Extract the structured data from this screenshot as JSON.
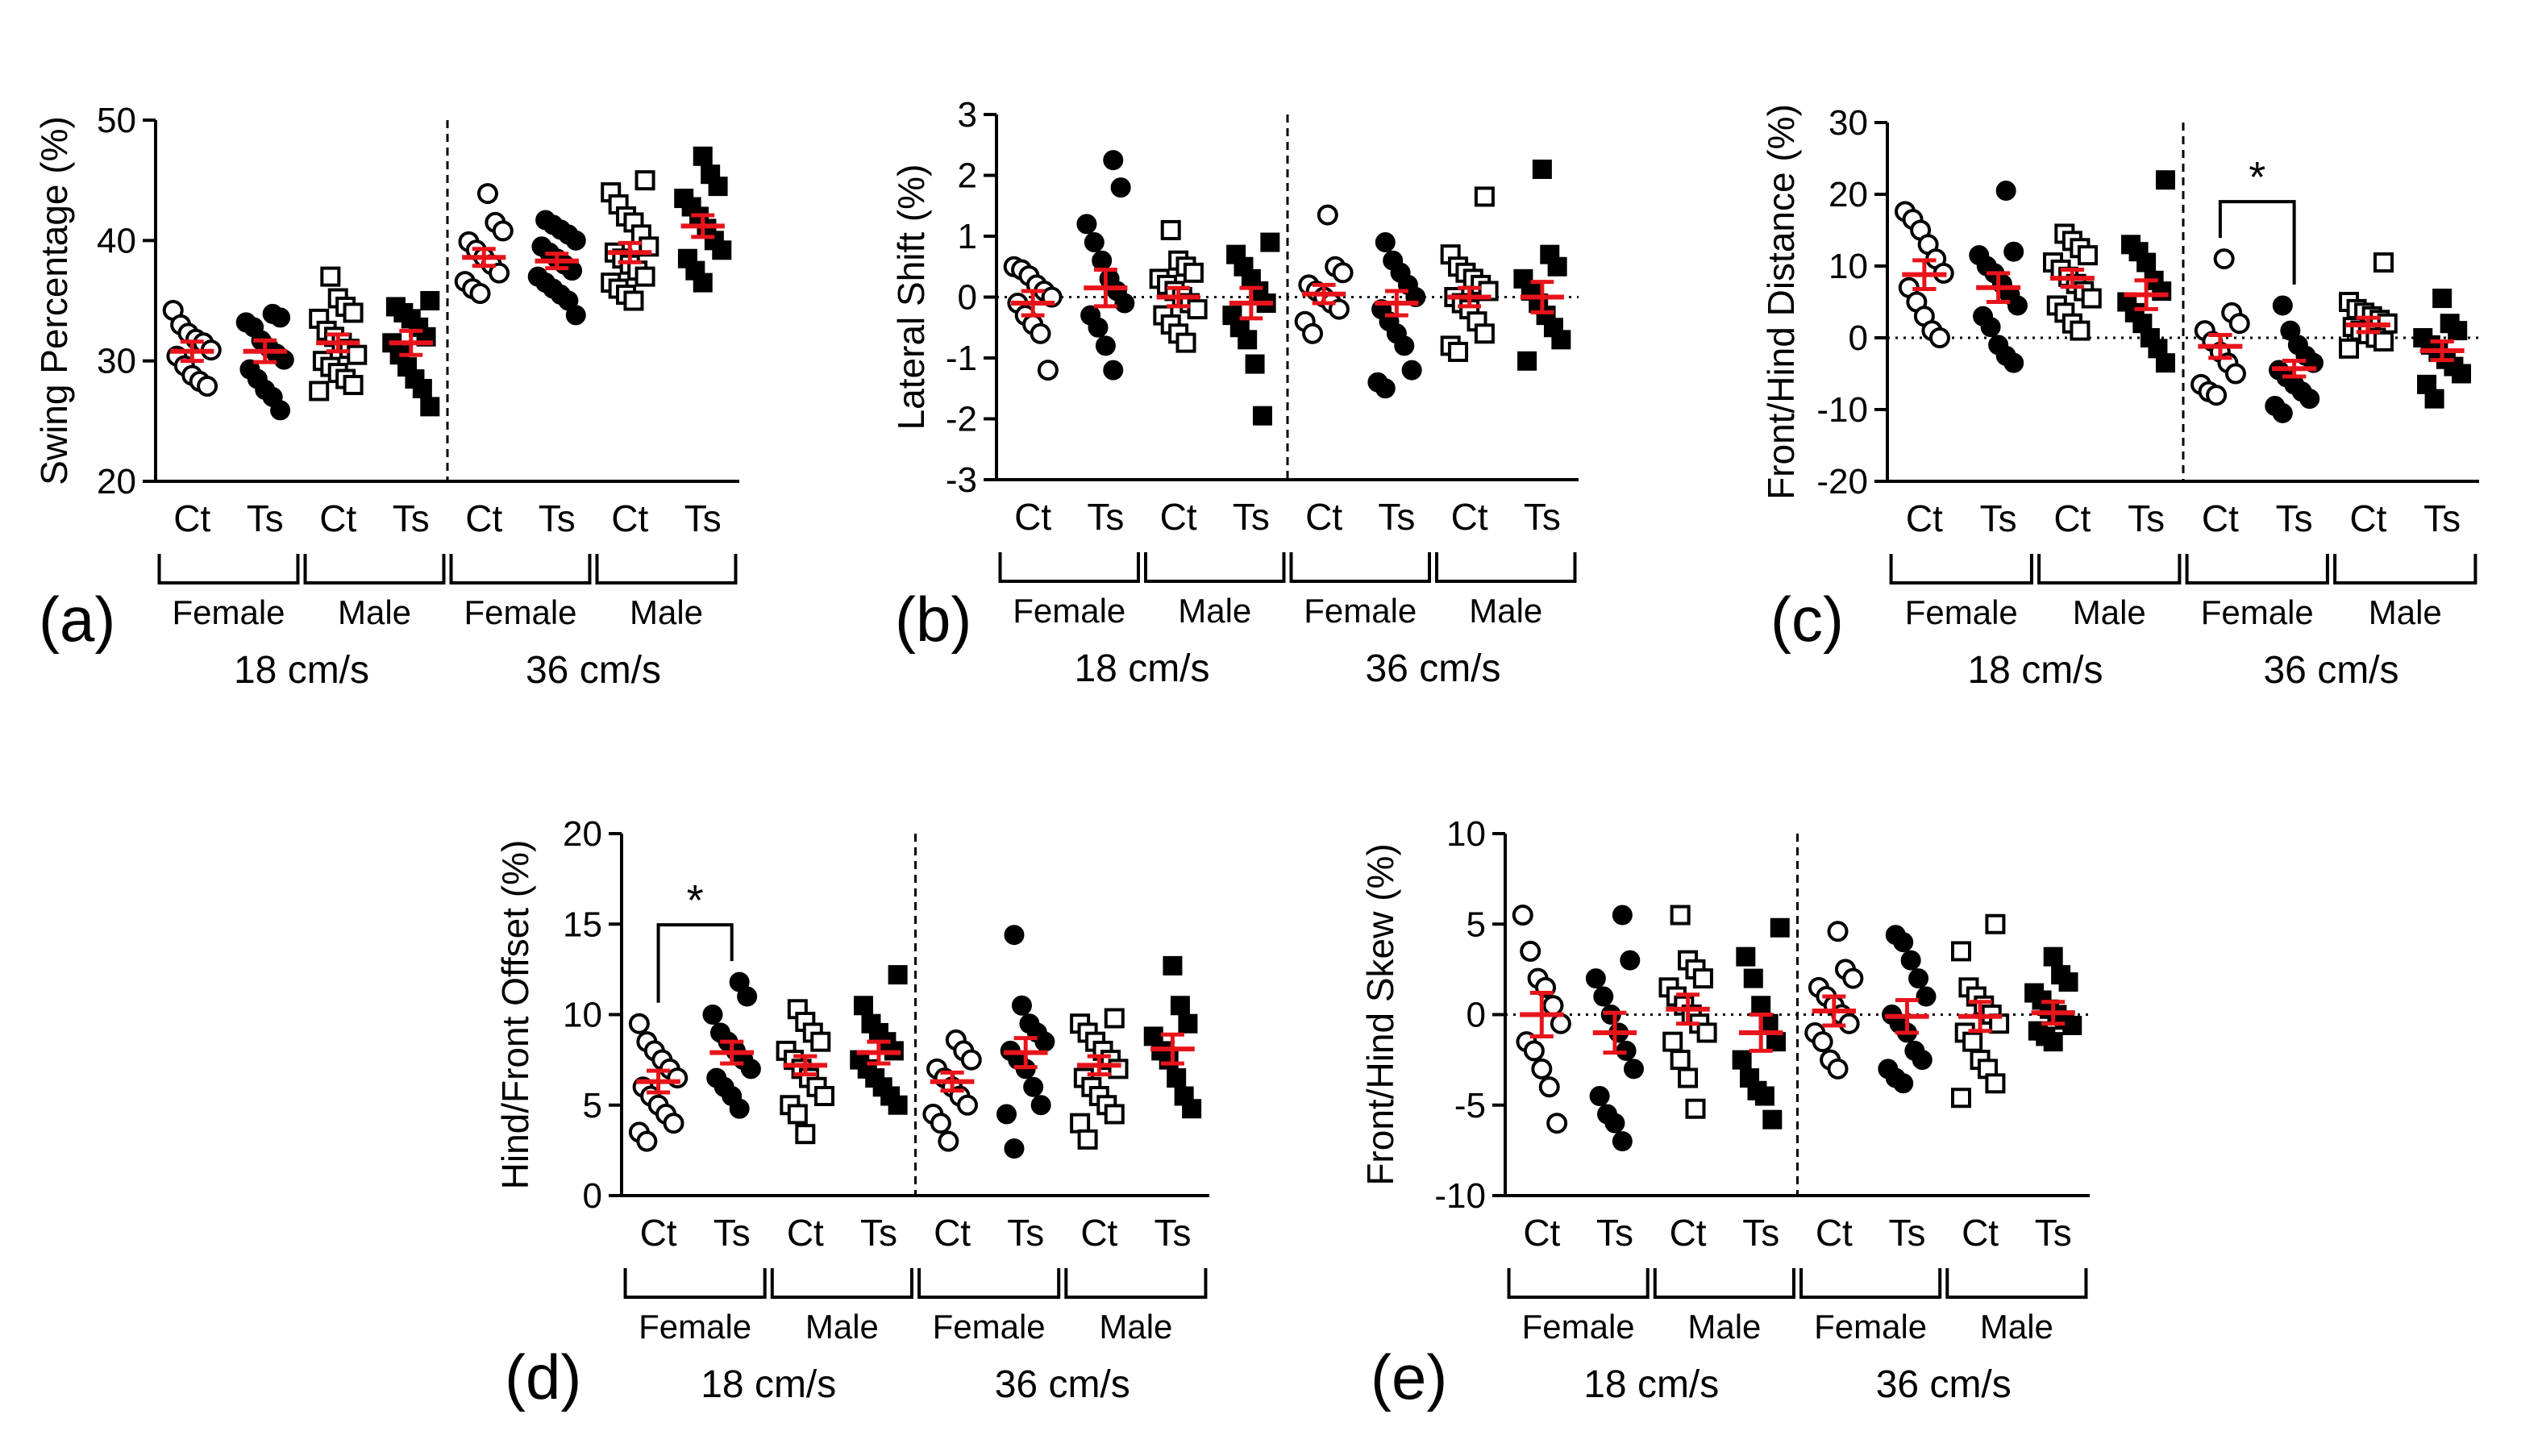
{
  "figure": {
    "group_labels": [
      "Ct",
      "Ts",
      "Ct",
      "Ts",
      "Ct",
      "Ts",
      "Ct",
      "Ts"
    ],
    "sex_labels": [
      "Female",
      "Male",
      "Female",
      "Male"
    ],
    "speed_labels": [
      "18 cm/s",
      "36 cm/s"
    ]
  },
  "chart_data": [
    {
      "panel": "(a)",
      "type": "scatter",
      "ylabel": "Swing Percentage (%)",
      "ylim": [
        20,
        50
      ],
      "yticks": [
        20,
        30,
        40,
        50
      ],
      "zero_line": false,
      "series": [
        {
          "group": "Ct",
          "sex": "Female",
          "speed": "18 cm/s",
          "marker": "open-circle",
          "mean": 30.8,
          "sem": 0.8,
          "values": [
            34.2,
            33.0,
            32.3,
            31.8,
            31.5,
            30.9,
            30.4,
            29.6,
            28.8,
            28.3,
            27.9
          ]
        },
        {
          "group": "Ts",
          "sex": "Female",
          "speed": "18 cm/s",
          "marker": "filled-circle",
          "mean": 30.8,
          "sem": 0.9,
          "values": [
            33.9,
            33.6,
            33.2,
            32.8,
            31.7,
            31.1,
            30.6,
            30.1,
            29.3,
            28.5,
            27.6,
            27.0,
            25.9
          ]
        },
        {
          "group": "Ct",
          "sex": "Male",
          "speed": "18 cm/s",
          "marker": "open-square",
          "mean": 31.5,
          "sem": 0.7,
          "values": [
            37.0,
            35.2,
            34.5,
            34.0,
            33.5,
            32.5,
            32.0,
            31.5,
            31.0,
            30.5,
            30.0,
            29.5,
            29.0,
            28.5,
            28.0,
            27.5
          ]
        },
        {
          "group": "Ts",
          "sex": "Male",
          "speed": "18 cm/s",
          "marker": "filled-square",
          "mean": 31.5,
          "sem": 1.0,
          "values": [
            35.0,
            34.5,
            34.0,
            33.5,
            32.8,
            32.0,
            31.5,
            30.5,
            29.5,
            28.5,
            27.7,
            26.2
          ]
        },
        {
          "group": "Ct",
          "sex": "Female",
          "speed": "36 cm/s",
          "marker": "open-circle",
          "mean": 38.6,
          "sem": 0.7,
          "values": [
            43.9,
            41.5,
            40.8,
            39.9,
            39.2,
            38.6,
            38.0,
            37.3,
            36.6,
            36.0,
            35.6
          ]
        },
        {
          "group": "Ts",
          "sex": "Female",
          "speed": "36 cm/s",
          "marker": "filled-circle",
          "mean": 38.3,
          "sem": 0.6,
          "values": [
            41.7,
            41.3,
            40.9,
            40.5,
            40.0,
            39.5,
            39.0,
            38.5,
            38.0,
            37.5,
            37.0,
            36.5,
            36.0,
            35.5,
            35.0,
            33.8
          ]
        },
        {
          "group": "Ct",
          "sex": "Male",
          "speed": "36 cm/s",
          "marker": "open-square",
          "mean": 39.0,
          "sem": 0.8,
          "values": [
            45.0,
            44.0,
            43.0,
            42.0,
            41.5,
            40.5,
            39.5,
            39.0,
            38.5,
            38.0,
            37.5,
            37.0,
            36.5,
            36.0,
            35.5,
            35.0
          ]
        },
        {
          "group": "Ts",
          "sex": "Male",
          "speed": "36 cm/s",
          "marker": "filled-square",
          "mean": 41.2,
          "sem": 0.9,
          "values": [
            47.0,
            45.5,
            44.5,
            43.5,
            42.8,
            42.0,
            41.0,
            40.0,
            39.2,
            38.5,
            37.5,
            36.5
          ]
        }
      ],
      "annotations": []
    },
    {
      "panel": "(b)",
      "type": "scatter",
      "ylabel": "Lateral Shift (%)",
      "ylim": [
        -3,
        3
      ],
      "yticks": [
        -3,
        -2,
        -1,
        0,
        1,
        2,
        3
      ],
      "zero_line": true,
      "series": [
        {
          "group": "Ct",
          "sex": "Female",
          "speed": "18 cm/s",
          "marker": "open-circle",
          "mean": -0.1,
          "sem": 0.2,
          "values": [
            0.5,
            0.45,
            0.35,
            0.2,
            0.1,
            0.0,
            -0.1,
            -0.3,
            -0.45,
            -0.6,
            -1.2
          ]
        },
        {
          "group": "Ts",
          "sex": "Female",
          "speed": "18 cm/s",
          "marker": "filled-circle",
          "mean": 0.15,
          "sem": 0.3,
          "values": [
            2.25,
            1.8,
            1.2,
            0.9,
            0.6,
            0.3,
            0.1,
            -0.1,
            -0.3,
            -0.5,
            -0.8,
            -1.2
          ]
        },
        {
          "group": "Ct",
          "sex": "Male",
          "speed": "18 cm/s",
          "marker": "open-square",
          "mean": 0.0,
          "sem": 0.15,
          "values": [
            1.1,
            0.6,
            0.5,
            0.4,
            0.3,
            0.2,
            0.1,
            0.0,
            -0.1,
            -0.2,
            -0.3,
            -0.45,
            -0.6,
            -0.75
          ]
        },
        {
          "group": "Ts",
          "sex": "Male",
          "speed": "18 cm/s",
          "marker": "filled-square",
          "mean": -0.1,
          "sem": 0.25,
          "values": [
            0.9,
            0.7,
            0.5,
            0.3,
            0.1,
            -0.1,
            -0.3,
            -0.5,
            -0.7,
            -1.1,
            -1.95
          ]
        },
        {
          "group": "Ct",
          "sex": "Female",
          "speed": "36 cm/s",
          "marker": "open-circle",
          "mean": 0.05,
          "sem": 0.15,
          "values": [
            1.35,
            0.5,
            0.4,
            0.2,
            0.1,
            0.0,
            -0.1,
            -0.2,
            -0.4,
            -0.6
          ]
        },
        {
          "group": "Ts",
          "sex": "Female",
          "speed": "36 cm/s",
          "marker": "filled-circle",
          "mean": -0.1,
          "sem": 0.2,
          "values": [
            0.9,
            0.6,
            0.4,
            0.2,
            0.0,
            -0.2,
            -0.4,
            -0.6,
            -0.8,
            -1.2,
            -1.4,
            -1.5
          ]
        },
        {
          "group": "Ct",
          "sex": "Male",
          "speed": "36 cm/s",
          "marker": "open-square",
          "mean": 0.0,
          "sem": 0.15,
          "values": [
            1.65,
            0.7,
            0.5,
            0.4,
            0.3,
            0.2,
            0.1,
            0.0,
            -0.1,
            -0.2,
            -0.4,
            -0.6,
            -0.8,
            -0.9
          ]
        },
        {
          "group": "Ts",
          "sex": "Male",
          "speed": "36 cm/s",
          "marker": "filled-square",
          "mean": 0.0,
          "sem": 0.25,
          "values": [
            2.1,
            0.7,
            0.5,
            0.3,
            0.1,
            -0.1,
            -0.3,
            -0.5,
            -0.7,
            -1.05
          ]
        }
      ],
      "annotations": []
    },
    {
      "panel": "(c)",
      "type": "scatter",
      "ylabel": "Front/Hind Distance (%)",
      "ylim": [
        -20,
        30
      ],
      "yticks": [
        -20,
        -10,
        0,
        10,
        20,
        30
      ],
      "zero_line": true,
      "series": [
        {
          "group": "Ct",
          "sex": "Female",
          "speed": "18 cm/s",
          "marker": "open-circle",
          "mean": 8.8,
          "sem": 2.0,
          "values": [
            17.6,
            16.5,
            15.0,
            13.0,
            11.0,
            9.0,
            7.0,
            5.0,
            3.0,
            1.0,
            0.0
          ]
        },
        {
          "group": "Ts",
          "sex": "Female",
          "speed": "18 cm/s",
          "marker": "filled-circle",
          "mean": 7.0,
          "sem": 2.0,
          "values": [
            20.5,
            12.0,
            11.5,
            10.0,
            9.0,
            7.5,
            6.0,
            4.5,
            3.0,
            1.5,
            -1.0,
            -2.5,
            -3.5
          ]
        },
        {
          "group": "Ct",
          "sex": "Male",
          "speed": "18 cm/s",
          "marker": "open-square",
          "mean": 8.3,
          "sem": 1.2,
          "values": [
            14.5,
            13.5,
            12.5,
            11.5,
            10.5,
            9.5,
            8.5,
            7.5,
            6.5,
            5.5,
            4.5,
            3.5,
            2.0,
            1.0
          ]
        },
        {
          "group": "Ts",
          "sex": "Male",
          "speed": "18 cm/s",
          "marker": "filled-square",
          "mean": 6.0,
          "sem": 2.0,
          "values": [
            22.0,
            13.0,
            12.0,
            10.5,
            8.0,
            6.5,
            5.0,
            3.5,
            2.0,
            0.0,
            -1.5,
            -3.5
          ]
        },
        {
          "group": "Ct",
          "sex": "Female",
          "speed": "36 cm/s",
          "marker": "open-circle",
          "mean": -1.2,
          "sem": 1.6,
          "values": [
            11.0,
            3.5,
            2.0,
            1.0,
            -0.5,
            -2.0,
            -3.5,
            -5.0,
            -6.5,
            -7.5,
            -8.0
          ]
        },
        {
          "group": "Ts",
          "sex": "Female",
          "speed": "36 cm/s",
          "marker": "filled-circle",
          "mean": -4.3,
          "sem": 1.1,
          "values": [
            4.5,
            1.0,
            -1.0,
            -2.5,
            -3.5,
            -4.5,
            -5.5,
            -6.5,
            -7.5,
            -8.5,
            -9.5,
            -10.5
          ]
        },
        {
          "group": "Ct",
          "sex": "Male",
          "speed": "36 cm/s",
          "marker": "open-square",
          "mean": 1.8,
          "sem": 1.0,
          "values": [
            10.5,
            5.0,
            4.0,
            3.5,
            3.0,
            2.5,
            2.0,
            1.5,
            1.0,
            0.5,
            0.0,
            -0.5,
            -1.5
          ]
        },
        {
          "group": "Ts",
          "sex": "Male",
          "speed": "36 cm/s",
          "marker": "filled-square",
          "mean": -1.8,
          "sem": 1.3,
          "values": [
            5.5,
            2.0,
            1.0,
            0.0,
            -1.0,
            -2.0,
            -3.0,
            -4.0,
            -5.0,
            -6.5,
            -8.5
          ]
        }
      ],
      "annotations": [
        {
          "text": "*",
          "between": [
            4,
            5
          ]
        }
      ]
    },
    {
      "panel": "(d)",
      "type": "scatter",
      "ylabel": "Hind/Front Offset (%)",
      "ylim": [
        0,
        20
      ],
      "yticks": [
        0,
        5,
        10,
        15,
        20
      ],
      "zero_line": false,
      "series": [
        {
          "group": "Ct",
          "sex": "Female",
          "speed": "18 cm/s",
          "marker": "open-circle",
          "mean": 6.3,
          "sem": 0.6,
          "values": [
            9.5,
            8.5,
            8.0,
            7.5,
            7.0,
            6.5,
            6.0,
            5.5,
            5.0,
            4.5,
            4.0,
            3.5,
            3.0
          ]
        },
        {
          "group": "Ts",
          "sex": "Female",
          "speed": "18 cm/s",
          "marker": "filled-circle",
          "mean": 7.9,
          "sem": 0.6,
          "values": [
            11.8,
            11.0,
            10.0,
            9.0,
            8.5,
            8.0,
            7.5,
            7.0,
            6.5,
            6.0,
            5.5,
            4.8
          ]
        },
        {
          "group": "Ct",
          "sex": "Male",
          "speed": "18 cm/s",
          "marker": "open-square",
          "mean": 7.2,
          "sem": 0.5,
          "values": [
            10.3,
            9.6,
            9.0,
            8.5,
            8.0,
            7.5,
            7.0,
            6.5,
            6.0,
            5.5,
            5.0,
            4.5,
            3.4
          ]
        },
        {
          "group": "Ts",
          "sex": "Male",
          "speed": "18 cm/s",
          "marker": "filled-square",
          "mean": 7.9,
          "sem": 0.6,
          "values": [
            12.2,
            10.5,
            9.5,
            9.0,
            8.5,
            8.0,
            7.5,
            7.0,
            6.5,
            6.0,
            5.5,
            5.0
          ]
        },
        {
          "group": "Ct",
          "sex": "Female",
          "speed": "36 cm/s",
          "marker": "open-circle",
          "mean": 6.3,
          "sem": 0.5,
          "values": [
            8.6,
            8.0,
            7.5,
            7.0,
            6.5,
            6.0,
            5.5,
            5.0,
            4.5,
            4.0,
            3.0
          ]
        },
        {
          "group": "Ts",
          "sex": "Female",
          "speed": "36 cm/s",
          "marker": "filled-circle",
          "mean": 7.9,
          "sem": 0.8,
          "values": [
            14.4,
            10.5,
            9.5,
            9.0,
            8.5,
            8.0,
            7.5,
            7.0,
            6.0,
            5.0,
            4.5,
            2.6
          ]
        },
        {
          "group": "Ct",
          "sex": "Male",
          "speed": "36 cm/s",
          "marker": "open-square",
          "mean": 7.2,
          "sem": 0.5,
          "values": [
            9.8,
            9.5,
            9.0,
            8.5,
            8.0,
            7.5,
            7.0,
            6.5,
            6.0,
            5.5,
            5.0,
            4.5,
            4.0,
            3.1
          ]
        },
        {
          "group": "Ts",
          "sex": "Male",
          "speed": "36 cm/s",
          "marker": "filled-square",
          "mean": 8.1,
          "sem": 0.8,
          "values": [
            12.7,
            10.5,
            9.5,
            8.8,
            8.0,
            7.5,
            6.5,
            5.5,
            4.8
          ]
        }
      ],
      "annotations": [
        {
          "text": "*",
          "between": [
            0,
            1
          ]
        }
      ]
    },
    {
      "panel": "(e)",
      "type": "scatter",
      "ylabel": "Front/Hind Skew (%)",
      "ylim": [
        -10,
        10
      ],
      "yticks": [
        -10,
        -5,
        0,
        5,
        10
      ],
      "zero_line": true,
      "series": [
        {
          "group": "Ct",
          "sex": "Female",
          "speed": "18 cm/s",
          "marker": "open-circle",
          "mean": 0.0,
          "sem": 1.2,
          "values": [
            5.5,
            3.5,
            2.0,
            1.5,
            0.5,
            -0.5,
            -1.5,
            -2.0,
            -3.0,
            -4.0,
            -6.0
          ]
        },
        {
          "group": "Ts",
          "sex": "Female",
          "speed": "18 cm/s",
          "marker": "filled-circle",
          "mean": -1.0,
          "sem": 1.1,
          "values": [
            5.5,
            3.0,
            2.0,
            1.0,
            0.0,
            -1.0,
            -2.0,
            -3.0,
            -4.5,
            -5.5,
            -6.0,
            -7.0
          ]
        },
        {
          "group": "Ct",
          "sex": "Male",
          "speed": "18 cm/s",
          "marker": "open-square",
          "mean": 0.3,
          "sem": 0.8,
          "values": [
            5.5,
            3.0,
            2.5,
            2.0,
            1.5,
            1.0,
            0.5,
            0.0,
            -0.5,
            -1.0,
            -1.5,
            -2.5,
            -3.5,
            -5.2
          ]
        },
        {
          "group": "Ts",
          "sex": "Male",
          "speed": "18 cm/s",
          "marker": "filled-square",
          "mean": -1.0,
          "sem": 1.0,
          "values": [
            4.8,
            3.2,
            2.0,
            0.5,
            -0.5,
            -1.5,
            -2.5,
            -3.5,
            -4.2,
            -4.5,
            -5.8
          ]
        },
        {
          "group": "Ct",
          "sex": "Female",
          "speed": "36 cm/s",
          "marker": "open-circle",
          "mean": 0.2,
          "sem": 0.8,
          "values": [
            4.6,
            2.5,
            2.0,
            1.5,
            1.0,
            0.5,
            0.0,
            -0.5,
            -1.0,
            -1.5,
            -2.5,
            -3.0
          ]
        },
        {
          "group": "Ts",
          "sex": "Female",
          "speed": "36 cm/s",
          "marker": "filled-circle",
          "mean": -0.1,
          "sem": 0.9,
          "values": [
            4.4,
            4.0,
            3.0,
            2.0,
            1.0,
            0.0,
            -0.5,
            -1.0,
            -2.0,
            -2.5,
            -3.0,
            -3.5,
            -3.8
          ]
        },
        {
          "group": "Ct",
          "sex": "Male",
          "speed": "36 cm/s",
          "marker": "open-square",
          "mean": -0.1,
          "sem": 0.8,
          "values": [
            5.0,
            3.5,
            1.5,
            1.0,
            0.5,
            0.0,
            -0.5,
            -1.0,
            -1.5,
            -2.5,
            -3.0,
            -3.8,
            -4.6
          ]
        },
        {
          "group": "Ts",
          "sex": "Male",
          "speed": "36 cm/s",
          "marker": "filled-square",
          "mean": 0.1,
          "sem": 0.6,
          "values": [
            3.2,
            2.2,
            1.8,
            1.2,
            0.8,
            0.3,
            0.0,
            -0.3,
            -0.6,
            -0.9,
            -1.2,
            -1.5
          ]
        }
      ],
      "annotations": []
    }
  ]
}
